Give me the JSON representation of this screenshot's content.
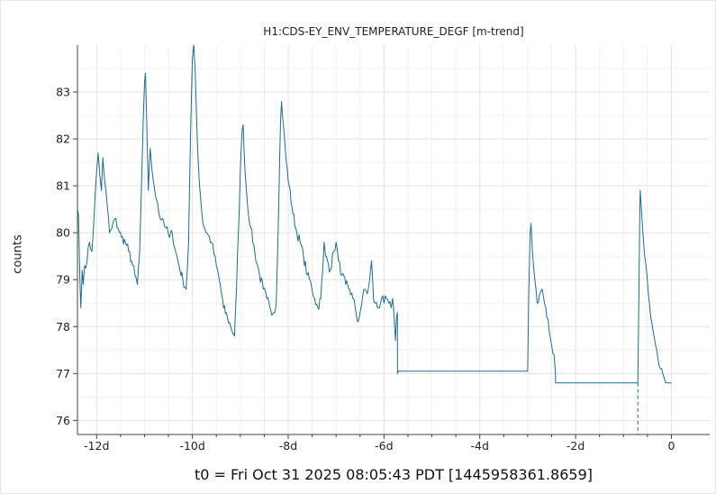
{
  "chart_data": {
    "type": "line",
    "title": "H1:CDS-EY_ENV_TEMPERATURE_DEGF [m-trend]",
    "xlabel": "",
    "ylabel": "counts",
    "footer": "t0 = Fri Oct 31 2025 08:05:43 PDT [1445958361.8659]",
    "x_unit": "days relative to t0",
    "xlim": [
      -12.4,
      0.8
    ],
    "ylim": [
      75.7,
      84.0
    ],
    "x_ticks": [
      -12,
      -10,
      -8,
      -6,
      -4,
      -2,
      0
    ],
    "x_tick_labels": [
      "-12d",
      "-10d",
      "-8d",
      "-6d",
      "-4d",
      "-2d",
      "0"
    ],
    "y_ticks": [
      76,
      77,
      78,
      79,
      80,
      81,
      82,
      83
    ],
    "y_tick_labels": [
      "76",
      "77",
      "78",
      "79",
      "80",
      "81",
      "82",
      "83"
    ],
    "grid": true,
    "legend": "none",
    "series": [
      {
        "color": "#1f6a8f",
        "points": [
          [
            -12.4,
            80.5
          ],
          [
            -12.38,
            80.4
          ],
          [
            -12.35,
            79.0
          ],
          [
            -12.33,
            78.4
          ],
          [
            -12.3,
            79.2
          ],
          [
            -12.28,
            78.9
          ],
          [
            -12.25,
            79.3
          ],
          [
            -12.2,
            79.4
          ],
          [
            -12.15,
            79.8
          ],
          [
            -12.1,
            79.6
          ],
          [
            -12.05,
            80.4
          ],
          [
            -12.0,
            81.3
          ],
          [
            -11.97,
            81.7
          ],
          [
            -11.93,
            81.2
          ],
          [
            -11.9,
            80.9
          ],
          [
            -11.87,
            81.6
          ],
          [
            -11.83,
            81.1
          ],
          [
            -11.78,
            80.6
          ],
          [
            -11.73,
            80.0
          ],
          [
            -11.68,
            80.1
          ],
          [
            -11.62,
            80.3
          ],
          [
            -11.55,
            80.1
          ],
          [
            -11.48,
            79.9
          ],
          [
            -11.4,
            79.8
          ],
          [
            -11.33,
            79.6
          ],
          [
            -11.27,
            79.4
          ],
          [
            -11.2,
            79.1
          ],
          [
            -11.15,
            78.9
          ],
          [
            -11.1,
            79.6
          ],
          [
            -11.05,
            81.5
          ],
          [
            -11.0,
            83.2
          ],
          [
            -10.98,
            83.4
          ],
          [
            -10.95,
            82.2
          ],
          [
            -10.92,
            80.9
          ],
          [
            -10.88,
            81.8
          ],
          [
            -10.85,
            81.4
          ],
          [
            -10.8,
            81.0
          ],
          [
            -10.75,
            80.7
          ],
          [
            -10.7,
            80.4
          ],
          [
            -10.62,
            80.3
          ],
          [
            -10.55,
            80.1
          ],
          [
            -10.48,
            79.9
          ],
          [
            -10.42,
            80.0
          ],
          [
            -10.35,
            79.6
          ],
          [
            -10.28,
            79.3
          ],
          [
            -10.2,
            79.0
          ],
          [
            -10.13,
            78.8
          ],
          [
            -10.08,
            79.8
          ],
          [
            -10.04,
            82.0
          ],
          [
            -10.0,
            83.7
          ],
          [
            -9.97,
            84.0
          ],
          [
            -9.94,
            83.4
          ],
          [
            -9.9,
            82.0
          ],
          [
            -9.85,
            81.0
          ],
          [
            -9.78,
            80.2
          ],
          [
            -9.7,
            80.0
          ],
          [
            -9.6,
            79.8
          ],
          [
            -9.5,
            79.3
          ],
          [
            -9.42,
            78.9
          ],
          [
            -9.35,
            78.4
          ],
          [
            -9.27,
            78.2
          ],
          [
            -9.2,
            78.0
          ],
          [
            -9.12,
            77.8
          ],
          [
            -9.08,
            78.8
          ],
          [
            -9.04,
            80.0
          ],
          [
            -9.0,
            81.3
          ],
          [
            -8.96,
            82.2
          ],
          [
            -8.94,
            82.3
          ],
          [
            -8.9,
            81.3
          ],
          [
            -8.85,
            80.6
          ],
          [
            -8.78,
            80.1
          ],
          [
            -8.7,
            79.6
          ],
          [
            -8.6,
            79.1
          ],
          [
            -8.52,
            78.8
          ],
          [
            -8.45,
            78.6
          ],
          [
            -8.38,
            78.4
          ],
          [
            -8.3,
            78.3
          ],
          [
            -8.25,
            78.5
          ],
          [
            -8.2,
            80.5
          ],
          [
            -8.16,
            82.4
          ],
          [
            -8.14,
            82.8
          ],
          [
            -8.1,
            82.3
          ],
          [
            -8.04,
            81.5
          ],
          [
            -7.98,
            81.0
          ],
          [
            -7.9,
            80.4
          ],
          [
            -7.82,
            80.0
          ],
          [
            -7.75,
            79.8
          ],
          [
            -7.68,
            79.5
          ],
          [
            -7.6,
            79.1
          ],
          [
            -7.52,
            78.9
          ],
          [
            -7.45,
            78.6
          ],
          [
            -7.38,
            78.4
          ],
          [
            -7.32,
            78.6
          ],
          [
            -7.28,
            79.2
          ],
          [
            -7.25,
            79.8
          ],
          [
            -7.22,
            79.5
          ],
          [
            -7.18,
            79.4
          ],
          [
            -7.12,
            79.2
          ],
          [
            -7.05,
            79.6
          ],
          [
            -7.0,
            79.8
          ],
          [
            -6.95,
            79.4
          ],
          [
            -6.88,
            79.1
          ],
          [
            -6.8,
            78.9
          ],
          [
            -6.72,
            78.8
          ],
          [
            -6.65,
            78.6
          ],
          [
            -6.6,
            78.4
          ],
          [
            -6.55,
            78.1
          ],
          [
            -6.5,
            78.3
          ],
          [
            -6.45,
            78.6
          ],
          [
            -6.4,
            78.8
          ],
          [
            -6.35,
            78.7
          ],
          [
            -6.3,
            79.0
          ],
          [
            -6.26,
            79.4
          ],
          [
            -6.22,
            78.6
          ],
          [
            -6.18,
            78.5
          ],
          [
            -6.12,
            78.4
          ],
          [
            -6.05,
            78.6
          ],
          [
            -6.0,
            78.5
          ],
          [
            -5.95,
            78.6
          ],
          [
            -5.9,
            78.5
          ],
          [
            -5.85,
            78.4
          ],
          [
            -5.82,
            78.6
          ],
          [
            -5.78,
            78.0
          ],
          [
            -5.76,
            77.7
          ],
          [
            -5.74,
            78.2
          ],
          [
            -5.72,
            78.3
          ],
          [
            -5.72,
            77.0
          ],
          [
            -5.7,
            77.05
          ],
          [
            -5.0,
            77.05
          ],
          [
            -4.0,
            77.05
          ],
          [
            -3.2,
            77.05
          ],
          [
            -3.0,
            77.05
          ],
          [
            -2.98,
            78.6
          ],
          [
            -2.95,
            80.0
          ],
          [
            -2.93,
            80.2
          ],
          [
            -2.9,
            79.6
          ],
          [
            -2.85,
            79.0
          ],
          [
            -2.8,
            78.5
          ],
          [
            -2.75,
            78.7
          ],
          [
            -2.7,
            78.8
          ],
          [
            -2.65,
            78.5
          ],
          [
            -2.6,
            78.2
          ],
          [
            -2.55,
            77.9
          ],
          [
            -2.5,
            77.6
          ],
          [
            -2.45,
            77.4
          ],
          [
            -2.42,
            77.0
          ],
          [
            -2.42,
            76.8
          ],
          [
            -2.0,
            76.8
          ],
          [
            -1.5,
            76.8
          ],
          [
            -1.1,
            76.8
          ],
          [
            -0.7,
            76.8
          ],
          [
            -0.68,
            78.5
          ],
          [
            -0.66,
            80.5
          ],
          [
            -0.65,
            80.9
          ],
          [
            -0.62,
            80.4
          ],
          [
            -0.58,
            79.8
          ],
          [
            -0.53,
            79.3
          ],
          [
            -0.48,
            78.7
          ],
          [
            -0.43,
            78.2
          ],
          [
            -0.38,
            77.9
          ],
          [
            -0.33,
            77.6
          ],
          [
            -0.28,
            77.3
          ],
          [
            -0.23,
            77.1
          ],
          [
            -0.18,
            77.0
          ],
          [
            -0.15,
            76.9
          ],
          [
            -0.12,
            76.8
          ],
          [
            -0.06,
            76.8
          ],
          [
            0.0,
            76.8
          ]
        ],
        "dropline_x": -0.7
      }
    ]
  }
}
